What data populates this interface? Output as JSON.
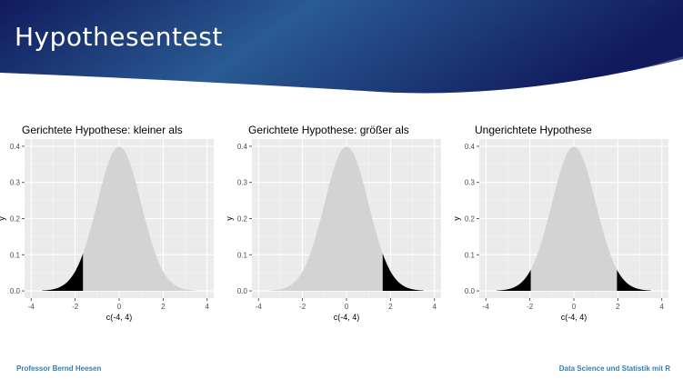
{
  "slide": {
    "title": "Hypothesentest",
    "footer_left": "Professor Bernd Heesen",
    "footer_right": "Data Science und Statistik mit R"
  },
  "colors": {
    "banner_dark": "#101a5c",
    "banner_mid": "#2a5b93",
    "panel_bg": "#ebebeb",
    "curve_fill": "#d3d3d3",
    "tail_fill": "#000000",
    "footer_text": "#2f7fb7"
  },
  "chart_data": [
    {
      "type": "area",
      "title": "Gerichtete Hypothese: kleiner als",
      "xlabel": "c(-4, 4)",
      "ylabel": "y",
      "xlim": [
        -4,
        4
      ],
      "ylim": [
        0,
        0.4
      ],
      "xticks": [
        "-4",
        "-2",
        "0",
        "2",
        "4"
      ],
      "yticks": [
        "0.0",
        "0.1",
        "0.2",
        "0.3",
        "0.4"
      ],
      "density": "standard normal",
      "curve_x_range": [
        -3.5,
        3.5
      ],
      "shaded_regions": [
        [
          -3.5,
          -1.645
        ]
      ],
      "grid": true
    },
    {
      "type": "area",
      "title": "Gerichtete Hypothese: größer als",
      "xlabel": "c(-4, 4)",
      "ylabel": "y",
      "xlim": [
        -4,
        4
      ],
      "ylim": [
        0,
        0.4
      ],
      "xticks": [
        "-4",
        "-2",
        "0",
        "2",
        "4"
      ],
      "yticks": [
        "0.0",
        "0.1",
        "0.2",
        "0.3",
        "0.4"
      ],
      "density": "standard normal",
      "curve_x_range": [
        -3.5,
        3.5
      ],
      "shaded_regions": [
        [
          1.645,
          3.5
        ]
      ],
      "grid": true
    },
    {
      "type": "area",
      "title": "Ungerichtete Hypothese",
      "xlabel": "c(-4, 4)",
      "ylabel": "y",
      "xlim": [
        -4,
        4
      ],
      "ylim": [
        0,
        0.4
      ],
      "xticks": [
        "-4",
        "-2",
        "0",
        "2",
        "4"
      ],
      "yticks": [
        "0.0",
        "0.1",
        "0.2",
        "0.3",
        "0.4"
      ],
      "density": "standard normal",
      "curve_x_range": [
        -3.5,
        3.5
      ],
      "shaded_regions": [
        [
          -3.5,
          -1.96
        ],
        [
          1.96,
          3.5
        ]
      ],
      "grid": true
    }
  ]
}
